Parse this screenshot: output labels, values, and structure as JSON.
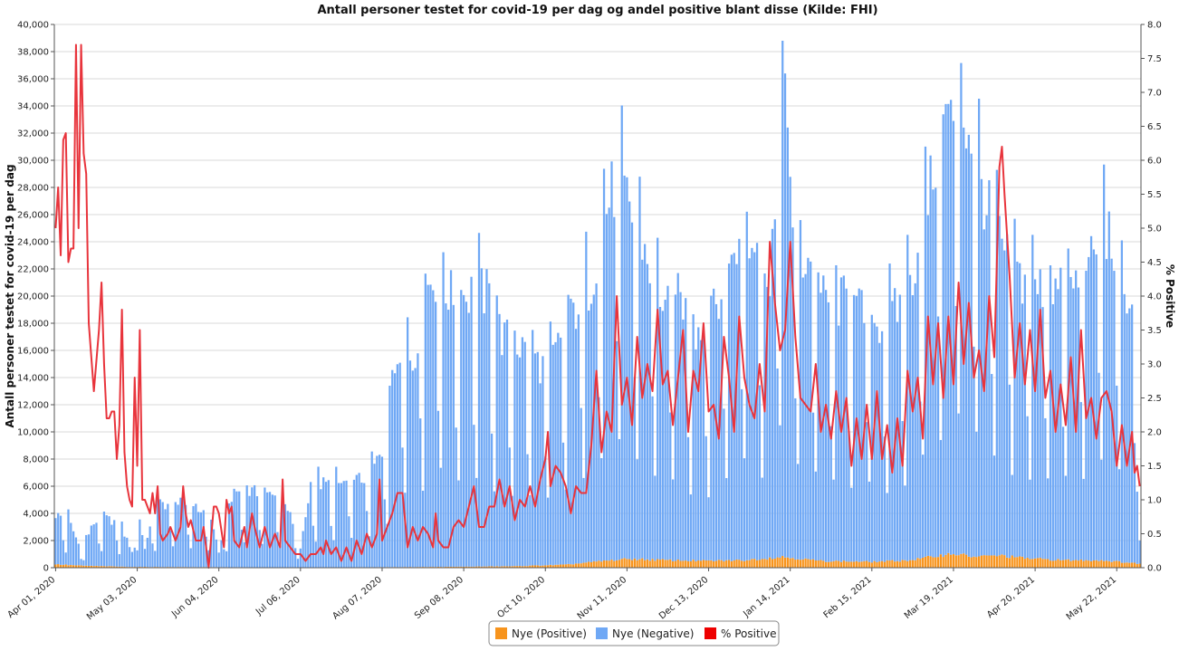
{
  "chart_data": {
    "type": "bar",
    "title": "Antall personer testet for covid-19 per dag og andel positive blant disse (Kilde: FHI)",
    "xlabel": "",
    "ylabel": "Antall personer testet for covid-19 per dag",
    "y2label": "% Positive",
    "ylim": [
      0,
      40000
    ],
    "y2lim": [
      0,
      8
    ],
    "yticks": [
      "0",
      "2,000",
      "4,000",
      "6,000",
      "8,000",
      "10,000",
      "12,000",
      "14,000",
      "16,000",
      "18,000",
      "20,000",
      "22,000",
      "24,000",
      "26,000",
      "28,000",
      "30,000",
      "32,000",
      "34,000",
      "36,000",
      "38,000",
      "40,000"
    ],
    "y2ticks": [
      "0.0",
      "0.5",
      "1.0",
      "1.5",
      "2.0",
      "2.5",
      "3.0",
      "3.5",
      "4.0",
      "4.5",
      "5.0",
      "5.5",
      "6.0",
      "6.5",
      "7.0",
      "7.5",
      "8.0"
    ],
    "start_date": "2020-04-01",
    "num_days": 426,
    "xticks": [
      {
        "label": "Apr 01, 2020",
        "day": 0
      },
      {
        "label": "May 03, 2020",
        "day": 32
      },
      {
        "label": "Jun 04, 2020",
        "day": 64
      },
      {
        "label": "Jul 06, 2020",
        "day": 96
      },
      {
        "label": "Aug 07, 2020",
        "day": 128
      },
      {
        "label": "Sep 08, 2020",
        "day": 160
      },
      {
        "label": "Oct 10, 2020",
        "day": 192
      },
      {
        "label": "Nov 11, 2020",
        "day": 224
      },
      {
        "label": "Dec 13, 2020",
        "day": 256
      },
      {
        "label": "Jan 14, 2021",
        "day": 288
      },
      {
        "label": "Feb 15, 2021",
        "day": 320
      },
      {
        "label": "Mar 19, 2021",
        "day": 352
      },
      {
        "label": "Apr 20, 2021",
        "day": 384
      },
      {
        "label": "May 22, 2021",
        "day": 416
      }
    ],
    "legend": {
      "placement": "bottom-center",
      "items": [
        {
          "name": "Nye (Positive)",
          "color": "#f7941d"
        },
        {
          "name": "Nye (Negative)",
          "color": "#6fa8f5"
        },
        {
          "name": "% Positive",
          "color": "#ee0000"
        }
      ]
    },
    "series_colors": {
      "positive": "#f7941d",
      "negative": "#6fa8f5",
      "pct_line": "#e8343c"
    },
    "total_tested_anchors": [
      [
        0,
        3900
      ],
      [
        5,
        3600
      ],
      [
        10,
        1300
      ],
      [
        15,
        3300
      ],
      [
        20,
        3600
      ],
      [
        25,
        3300
      ],
      [
        30,
        1200
      ],
      [
        32,
        4100
      ],
      [
        35,
        1500
      ],
      [
        40,
        4700
      ],
      [
        50,
        4700
      ],
      [
        60,
        4000
      ],
      [
        64,
        1200
      ],
      [
        70,
        5700
      ],
      [
        80,
        5500
      ],
      [
        90,
        5000
      ],
      [
        96,
        1300
      ],
      [
        100,
        6200
      ],
      [
        110,
        6100
      ],
      [
        120,
        6500
      ],
      [
        125,
        7500
      ],
      [
        128,
        8500
      ],
      [
        132,
        13500
      ],
      [
        136,
        17800
      ],
      [
        140,
        15000
      ],
      [
        145,
        20500
      ],
      [
        150,
        21500
      ],
      [
        155,
        20000
      ],
      [
        160,
        20000
      ],
      [
        165,
        20500
      ],
      [
        170,
        20000
      ],
      [
        175,
        17000
      ],
      [
        180,
        16500
      ],
      [
        185,
        16000
      ],
      [
        190,
        15000
      ],
      [
        192,
        14500
      ],
      [
        195,
        15500
      ],
      [
        200,
        17500
      ],
      [
        205,
        19500
      ],
      [
        210,
        21000
      ],
      [
        215,
        26000
      ],
      [
        220,
        28500
      ],
      [
        225,
        26500
      ],
      [
        230,
        24000
      ],
      [
        235,
        21000
      ],
      [
        240,
        19000
      ],
      [
        245,
        20000
      ],
      [
        250,
        17500
      ],
      [
        256,
        18000
      ],
      [
        260,
        19500
      ],
      [
        265,
        22000
      ],
      [
        270,
        25500
      ],
      [
        275,
        24000
      ],
      [
        280,
        19500
      ],
      [
        285,
        35500
      ],
      [
        288,
        30000
      ],
      [
        290,
        22000
      ],
      [
        295,
        23000
      ],
      [
        300,
        20000
      ],
      [
        305,
        19000
      ],
      [
        310,
        20000
      ],
      [
        315,
        19000
      ],
      [
        320,
        18000
      ],
      [
        325,
        18000
      ],
      [
        330,
        19000
      ],
      [
        335,
        21000
      ],
      [
        340,
        25000
      ],
      [
        345,
        30000
      ],
      [
        350,
        33500
      ],
      [
        352,
        33000
      ],
      [
        355,
        34000
      ],
      [
        360,
        31000
      ],
      [
        365,
        26500
      ],
      [
        370,
        24000
      ],
      [
        375,
        22000
      ],
      [
        380,
        21000
      ],
      [
        385,
        20500
      ],
      [
        390,
        21000
      ],
      [
        395,
        20000
      ],
      [
        400,
        21000
      ],
      [
        405,
        21500
      ],
      [
        410,
        25500
      ],
      [
        415,
        23500
      ],
      [
        418,
        20000
      ],
      [
        420,
        20500
      ],
      [
        424,
        17000
      ],
      [
        425,
        2000
      ]
    ],
    "positive_count_anchors": [
      [
        0,
        250
      ],
      [
        10,
        150
      ],
      [
        30,
        60
      ],
      [
        100,
        20
      ],
      [
        150,
        60
      ],
      [
        180,
        110
      ],
      [
        200,
        220
      ],
      [
        215,
        500
      ],
      [
        225,
        650
      ],
      [
        240,
        550
      ],
      [
        255,
        500
      ],
      [
        270,
        550
      ],
      [
        285,
        800
      ],
      [
        300,
        500
      ],
      [
        320,
        430
      ],
      [
        335,
        550
      ],
      [
        345,
        850
      ],
      [
        352,
        1050
      ],
      [
        360,
        800
      ],
      [
        370,
        900
      ],
      [
        380,
        700
      ],
      [
        395,
        550
      ],
      [
        410,
        550
      ],
      [
        425,
        300
      ]
    ],
    "pct_positive_anchors": [
      [
        0,
        5.0
      ],
      [
        1,
        5.6
      ],
      [
        2,
        4.6
      ],
      [
        3,
        6.3
      ],
      [
        4,
        6.4
      ],
      [
        5,
        4.5
      ],
      [
        6,
        4.7
      ],
      [
        7,
        4.7
      ],
      [
        8,
        7.7
      ],
      [
        9,
        5.0
      ],
      [
        10,
        7.7
      ],
      [
        11,
        6.1
      ],
      [
        12,
        5.8
      ],
      [
        13,
        3.6
      ],
      [
        14,
        3.1
      ],
      [
        15,
        2.6
      ],
      [
        17,
        3.5
      ],
      [
        18,
        4.2
      ],
      [
        19,
        3.0
      ],
      [
        20,
        2.2
      ],
      [
        21,
        2.2
      ],
      [
        22,
        2.3
      ],
      [
        23,
        2.3
      ],
      [
        24,
        1.6
      ],
      [
        25,
        2.1
      ],
      [
        26,
        3.8
      ],
      [
        27,
        1.7
      ],
      [
        28,
        1.2
      ],
      [
        29,
        1.0
      ],
      [
        30,
        0.9
      ],
      [
        31,
        2.8
      ],
      [
        32,
        1.5
      ],
      [
        33,
        3.5
      ],
      [
        34,
        1.0
      ],
      [
        35,
        1.0
      ],
      [
        36,
        0.9
      ],
      [
        37,
        0.8
      ],
      [
        38,
        1.1
      ],
      [
        39,
        0.8
      ],
      [
        40,
        1.2
      ],
      [
        41,
        0.5
      ],
      [
        42,
        0.4
      ],
      [
        44,
        0.5
      ],
      [
        45,
        0.6
      ],
      [
        47,
        0.4
      ],
      [
        49,
        0.6
      ],
      [
        50,
        1.2
      ],
      [
        51,
        0.8
      ],
      [
        52,
        0.6
      ],
      [
        53,
        0.7
      ],
      [
        55,
        0.4
      ],
      [
        57,
        0.4
      ],
      [
        58,
        0.6
      ],
      [
        60,
        0.0
      ],
      [
        62,
        0.9
      ],
      [
        63,
        0.9
      ],
      [
        64,
        0.8
      ],
      [
        66,
        0.3
      ],
      [
        67,
        1.0
      ],
      [
        68,
        0.8
      ],
      [
        69,
        0.9
      ],
      [
        70,
        0.4
      ],
      [
        72,
        0.3
      ],
      [
        74,
        0.6
      ],
      [
        75,
        0.3
      ],
      [
        77,
        0.8
      ],
      [
        78,
        0.6
      ],
      [
        80,
        0.3
      ],
      [
        82,
        0.6
      ],
      [
        84,
        0.3
      ],
      [
        86,
        0.5
      ],
      [
        88,
        0.3
      ],
      [
        89,
        1.3
      ],
      [
        90,
        0.4
      ],
      [
        92,
        0.3
      ],
      [
        94,
        0.2
      ],
      [
        96,
        0.2
      ],
      [
        98,
        0.1
      ],
      [
        100,
        0.2
      ],
      [
        102,
        0.2
      ],
      [
        104,
        0.3
      ],
      [
        105,
        0.2
      ],
      [
        106,
        0.4
      ],
      [
        108,
        0.2
      ],
      [
        110,
        0.3
      ],
      [
        112,
        0.1
      ],
      [
        114,
        0.3
      ],
      [
        116,
        0.1
      ],
      [
        118,
        0.4
      ],
      [
        120,
        0.2
      ],
      [
        122,
        0.5
      ],
      [
        124,
        0.3
      ],
      [
        126,
        0.5
      ],
      [
        127,
        1.3
      ],
      [
        128,
        0.4
      ],
      [
        130,
        0.6
      ],
      [
        132,
        0.8
      ],
      [
        134,
        1.1
      ],
      [
        136,
        1.1
      ],
      [
        138,
        0.3
      ],
      [
        140,
        0.6
      ],
      [
        142,
        0.4
      ],
      [
        144,
        0.6
      ],
      [
        146,
        0.5
      ],
      [
        148,
        0.3
      ],
      [
        149,
        0.8
      ],
      [
        150,
        0.4
      ],
      [
        152,
        0.3
      ],
      [
        154,
        0.3
      ],
      [
        156,
        0.6
      ],
      [
        158,
        0.7
      ],
      [
        160,
        0.6
      ],
      [
        162,
        0.9
      ],
      [
        164,
        1.2
      ],
      [
        166,
        0.6
      ],
      [
        168,
        0.6
      ],
      [
        170,
        0.9
      ],
      [
        172,
        0.9
      ],
      [
        174,
        1.3
      ],
      [
        176,
        0.9
      ],
      [
        178,
        1.2
      ],
      [
        180,
        0.7
      ],
      [
        182,
        1.0
      ],
      [
        184,
        0.9
      ],
      [
        186,
        1.2
      ],
      [
        188,
        0.9
      ],
      [
        190,
        1.3
      ],
      [
        192,
        1.6
      ],
      [
        193,
        2.0
      ],
      [
        194,
        1.2
      ],
      [
        196,
        1.5
      ],
      [
        198,
        1.4
      ],
      [
        200,
        1.2
      ],
      [
        202,
        0.8
      ],
      [
        204,
        1.2
      ],
      [
        206,
        1.1
      ],
      [
        208,
        1.1
      ],
      [
        210,
        1.8
      ],
      [
        212,
        2.9
      ],
      [
        214,
        1.7
      ],
      [
        216,
        2.3
      ],
      [
        218,
        2.0
      ],
      [
        220,
        4.0
      ],
      [
        222,
        2.4
      ],
      [
        224,
        2.8
      ],
      [
        226,
        2.1
      ],
      [
        228,
        3.4
      ],
      [
        230,
        2.5
      ],
      [
        232,
        3.0
      ],
      [
        234,
        2.6
      ],
      [
        236,
        3.8
      ],
      [
        238,
        2.7
      ],
      [
        240,
        2.9
      ],
      [
        242,
        2.1
      ],
      [
        244,
        2.8
      ],
      [
        246,
        3.5
      ],
      [
        248,
        2.0
      ],
      [
        250,
        2.9
      ],
      [
        252,
        2.6
      ],
      [
        254,
        3.6
      ],
      [
        256,
        2.3
      ],
      [
        258,
        2.4
      ],
      [
        260,
        1.9
      ],
      [
        262,
        3.4
      ],
      [
        264,
        2.8
      ],
      [
        266,
        2.0
      ],
      [
        268,
        3.7
      ],
      [
        270,
        2.8
      ],
      [
        272,
        2.4
      ],
      [
        274,
        2.2
      ],
      [
        276,
        3.0
      ],
      [
        278,
        2.3
      ],
      [
        280,
        4.8
      ],
      [
        282,
        3.9
      ],
      [
        284,
        3.2
      ],
      [
        286,
        3.5
      ],
      [
        288,
        4.8
      ],
      [
        290,
        3.4
      ],
      [
        292,
        2.5
      ],
      [
        294,
        2.4
      ],
      [
        296,
        2.3
      ],
      [
        298,
        3.0
      ],
      [
        300,
        2.0
      ],
      [
        302,
        2.4
      ],
      [
        304,
        1.9
      ],
      [
        306,
        2.6
      ],
      [
        308,
        2.0
      ],
      [
        310,
        2.5
      ],
      [
        312,
        1.5
      ],
      [
        314,
        2.2
      ],
      [
        316,
        1.6
      ],
      [
        318,
        2.4
      ],
      [
        320,
        1.6
      ],
      [
        322,
        2.6
      ],
      [
        324,
        1.6
      ],
      [
        326,
        2.1
      ],
      [
        328,
        1.4
      ],
      [
        330,
        2.2
      ],
      [
        332,
        1.5
      ],
      [
        334,
        2.9
      ],
      [
        336,
        2.3
      ],
      [
        338,
        2.8
      ],
      [
        340,
        1.9
      ],
      [
        342,
        3.7
      ],
      [
        344,
        2.7
      ],
      [
        346,
        3.6
      ],
      [
        348,
        2.5
      ],
      [
        350,
        3.7
      ],
      [
        352,
        2.7
      ],
      [
        354,
        4.2
      ],
      [
        356,
        3.0
      ],
      [
        358,
        3.9
      ],
      [
        360,
        2.8
      ],
      [
        362,
        3.2
      ],
      [
        364,
        2.6
      ],
      [
        366,
        4.0
      ],
      [
        368,
        3.1
      ],
      [
        370,
        5.9
      ],
      [
        371,
        6.2
      ],
      [
        372,
        5.5
      ],
      [
        374,
        4.3
      ],
      [
        376,
        2.8
      ],
      [
        378,
        3.6
      ],
      [
        380,
        2.7
      ],
      [
        382,
        3.5
      ],
      [
        384,
        2.6
      ],
      [
        386,
        3.8
      ],
      [
        388,
        2.5
      ],
      [
        390,
        2.9
      ],
      [
        392,
        2.0
      ],
      [
        394,
        2.7
      ],
      [
        396,
        2.1
      ],
      [
        398,
        3.1
      ],
      [
        400,
        2.0
      ],
      [
        402,
        3.5
      ],
      [
        404,
        2.2
      ],
      [
        406,
        2.5
      ],
      [
        408,
        1.9
      ],
      [
        410,
        2.5
      ],
      [
        412,
        2.6
      ],
      [
        414,
        2.3
      ],
      [
        416,
        1.5
      ],
      [
        418,
        2.1
      ],
      [
        420,
        1.5
      ],
      [
        422,
        2.0
      ],
      [
        423,
        1.4
      ],
      [
        424,
        1.5
      ],
      [
        425,
        1.2
      ]
    ]
  }
}
